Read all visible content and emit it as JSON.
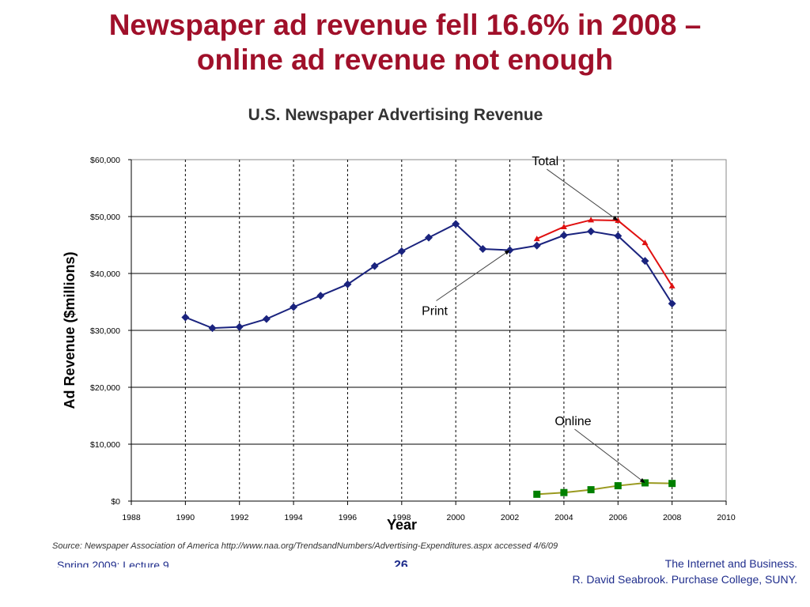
{
  "slide": {
    "title_line1": "Newspaper ad revenue fell 16.6% in 2008 –",
    "title_line2": "online ad revenue not enough"
  },
  "footer": {
    "left": "Spring 2009: Lecture 9",
    "page": "26",
    "right_line1": "The Internet and Business.",
    "right_line2": "R. David Seabrook. Purchase College, SUNY."
  },
  "colors": {
    "title": "#a0102a",
    "print": "#1a237e",
    "total": "#e01010",
    "online_line": "#9a9a20",
    "online_marker": "#008000"
  },
  "chart_data": {
    "type": "line",
    "title": "U.S. Newspaper Advertising Revenue",
    "xlabel": "Year",
    "ylabel": "Ad Revenue ($millions)",
    "xlim": [
      1988,
      2010
    ],
    "ylim": [
      0,
      60000
    ],
    "x_ticks": [
      1988,
      1990,
      1992,
      1994,
      1996,
      1998,
      2000,
      2002,
      2004,
      2006,
      2008,
      2010
    ],
    "y_ticks": [
      "$0",
      "$10,000",
      "$20,000",
      "$30,000",
      "$40,000",
      "$50,000",
      "$60,000"
    ],
    "y_tick_values": [
      0,
      10000,
      20000,
      30000,
      40000,
      50000,
      60000
    ],
    "grid": "horizontal solid, vertical dashed",
    "series": [
      {
        "name": "Print",
        "marker": "diamond",
        "points": [
          [
            1990,
            32300
          ],
          [
            1991,
            30400
          ],
          [
            1992,
            30600
          ],
          [
            1993,
            32000
          ],
          [
            1994,
            34100
          ],
          [
            1995,
            36100
          ],
          [
            1996,
            38100
          ],
          [
            1997,
            41300
          ],
          [
            1998,
            43900
          ],
          [
            1999,
            46300
          ],
          [
            2000,
            48700
          ],
          [
            2001,
            44300
          ],
          [
            2002,
            44100
          ],
          [
            2003,
            44900
          ],
          [
            2004,
            46700
          ],
          [
            2005,
            47400
          ],
          [
            2006,
            46600
          ],
          [
            2007,
            42200
          ],
          [
            2008,
            34700
          ]
        ]
      },
      {
        "name": "Total",
        "marker": "triangle",
        "points": [
          [
            2003,
            46100
          ],
          [
            2004,
            48200
          ],
          [
            2005,
            49400
          ],
          [
            2006,
            49300
          ],
          [
            2007,
            45400
          ],
          [
            2008,
            37800
          ]
        ]
      },
      {
        "name": "Online",
        "marker": "square",
        "points": [
          [
            2003,
            1200
          ],
          [
            2004,
            1500
          ],
          [
            2005,
            2000
          ],
          [
            2006,
            2700
          ],
          [
            2007,
            3200
          ],
          [
            2008,
            3100
          ]
        ]
      }
    ],
    "annotations": [
      {
        "text": "Total",
        "points_to": [
          2006,
          49300
        ]
      },
      {
        "text": "Print",
        "points_to": [
          2002,
          44100
        ]
      },
      {
        "text": "Online",
        "points_to": [
          2007,
          3200
        ]
      }
    ],
    "source": "Source: Newspaper Association of America http://www.naa.org/TrendsandNumbers/Advertising-Expenditures.aspx accessed 4/6/09"
  }
}
